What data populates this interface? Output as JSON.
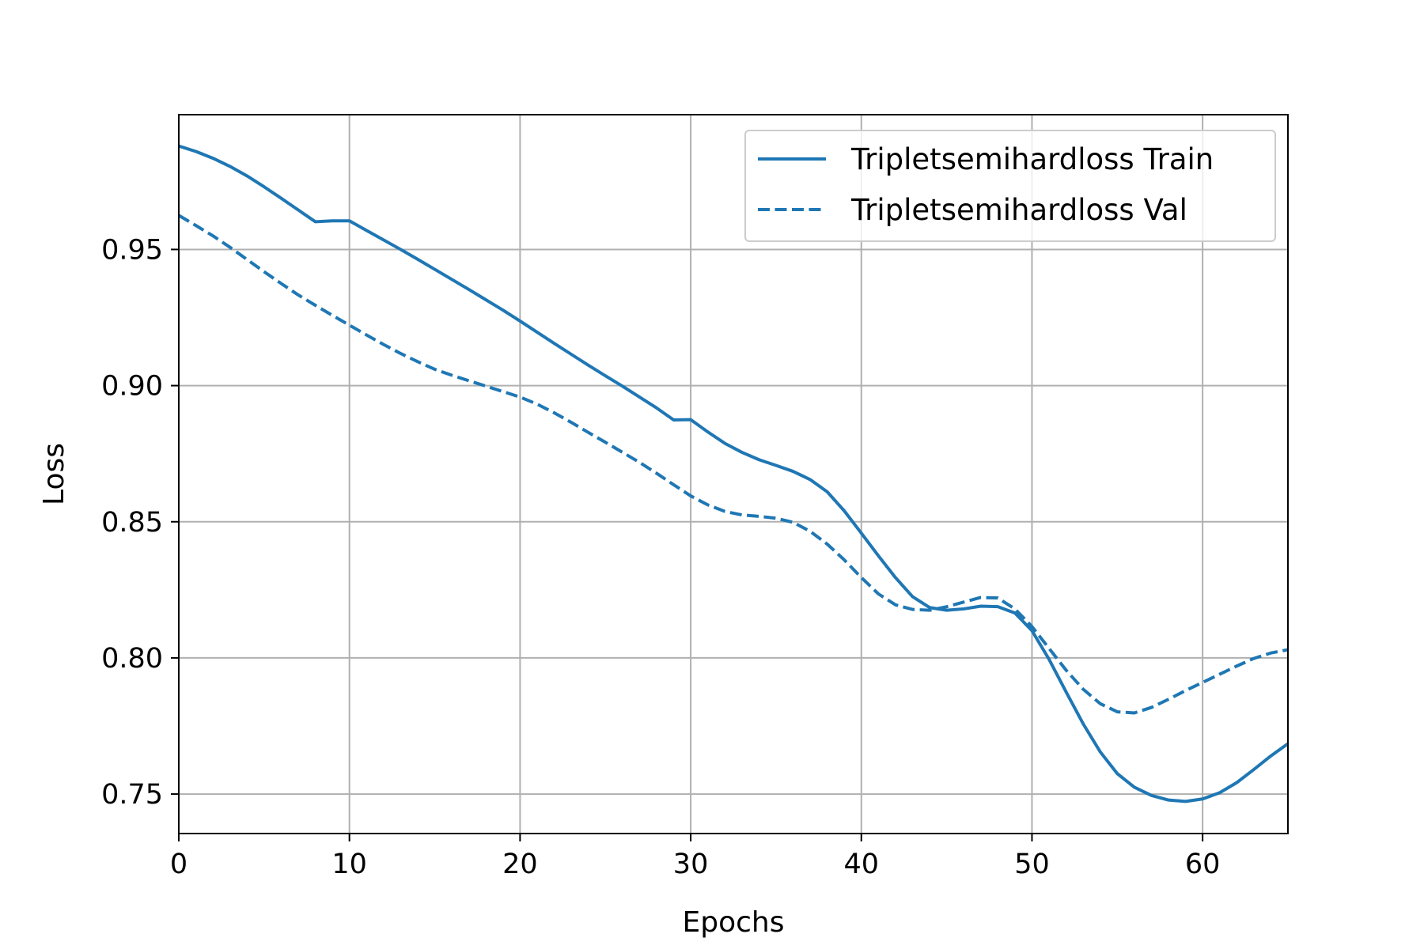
{
  "chart_data": {
    "type": "line",
    "title": "",
    "xlabel": "Epochs",
    "ylabel": "Loss",
    "xlim": [
      0,
      65
    ],
    "ylim": [
      0.7355,
      0.9995
    ],
    "xticks": [
      0,
      10,
      20,
      30,
      40,
      50,
      60
    ],
    "yticks": [
      0.75,
      0.8,
      0.85,
      0.9,
      0.95
    ],
    "ytick_labels": [
      "0.75",
      "0.80",
      "0.85",
      "0.90",
      "0.95"
    ],
    "grid": true,
    "legend_position": "top-right",
    "x": [
      0,
      1,
      2,
      3,
      4,
      5,
      6,
      7,
      8,
      9,
      10,
      11,
      12,
      13,
      14,
      15,
      16,
      17,
      18,
      19,
      20,
      21,
      22,
      23,
      24,
      25,
      26,
      27,
      28,
      29,
      30,
      31,
      32,
      33,
      34,
      35,
      36,
      37,
      38,
      39,
      40,
      41,
      42,
      43,
      44,
      45,
      46,
      47,
      48,
      49,
      50,
      51,
      52,
      53,
      54,
      55,
      56,
      57,
      58,
      59,
      60,
      61,
      62,
      63,
      64,
      65
    ],
    "series": [
      {
        "name": "Tripletsemihardloss Train",
        "style": "solid",
        "color": "#1f77b4",
        "values": [
          0.988,
          0.986,
          0.9835,
          0.9805,
          0.977,
          0.973,
          0.9688,
          0.9645,
          0.9602,
          0.9605,
          0.9605,
          0.957,
          0.9535,
          0.95,
          0.9464,
          0.9427,
          0.939,
          0.9353,
          0.9315,
          0.9277,
          0.9237,
          0.9196,
          0.9155,
          0.9115,
          0.9075,
          0.9036,
          0.8998,
          0.8958,
          0.8918,
          0.8874,
          0.8875,
          0.883,
          0.8788,
          0.8755,
          0.8728,
          0.8707,
          0.8685,
          0.8655,
          0.861,
          0.854,
          0.8458,
          0.8375,
          0.8295,
          0.8225,
          0.8185,
          0.8175,
          0.818,
          0.819,
          0.8188,
          0.8165,
          0.81,
          0.7995,
          0.7875,
          0.7758,
          0.7655,
          0.7575,
          0.7525,
          0.7495,
          0.7478,
          0.7473,
          0.7482,
          0.7505,
          0.7542,
          0.759,
          0.764,
          0.7685
        ],
        "values_note": ""
      },
      {
        "name": "Tripletsemihardloss Val",
        "style": "dashed",
        "color": "#1f77b4",
        "values": [
          0.9625,
          0.9588,
          0.955,
          0.9508,
          0.9463,
          0.9418,
          0.9375,
          0.9333,
          0.9295,
          0.9258,
          0.9222,
          0.9186,
          0.9151,
          0.9118,
          0.9088,
          0.906,
          0.9038,
          0.9018,
          0.8998,
          0.8978,
          0.8958,
          0.8932,
          0.89,
          0.8865,
          0.8828,
          0.8792,
          0.8755,
          0.8718,
          0.8678,
          0.8636,
          0.8595,
          0.8562,
          0.8538,
          0.8525,
          0.852,
          0.8513,
          0.8498,
          0.8465,
          0.8418,
          0.836,
          0.8295,
          0.8235,
          0.8195,
          0.8178,
          0.8175,
          0.8188,
          0.8205,
          0.8222,
          0.822,
          0.818,
          0.8115,
          0.8035,
          0.7955,
          0.7885,
          0.7832,
          0.7802,
          0.7798,
          0.7818,
          0.7848,
          0.788,
          0.791,
          0.794,
          0.797,
          0.7998,
          0.8018,
          0.803
        ],
        "values_note": ""
      }
    ]
  }
}
